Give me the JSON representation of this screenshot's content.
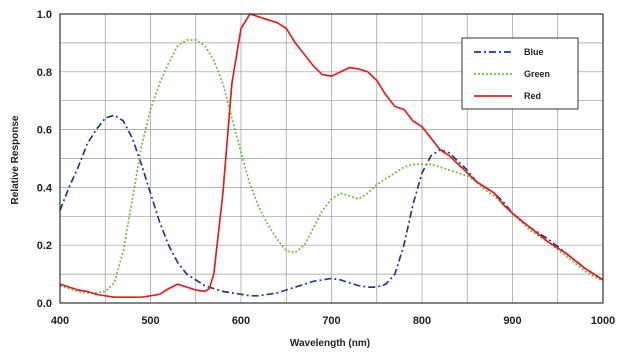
{
  "chart_data": {
    "type": "line",
    "title": "",
    "xlabel": "Wavelength (nm)",
    "ylabel": "Relative Response",
    "xlim": [
      400,
      1000
    ],
    "ylim": [
      0,
      1.0
    ],
    "x_ticks": [
      "400",
      "500",
      "600",
      "700",
      "800",
      "900",
      "1000"
    ],
    "y_ticks": [
      "0.0",
      "0.2",
      "0.4",
      "0.6",
      "0.8",
      "1.0"
    ],
    "grid": true,
    "legend_position": "top-right",
    "series": [
      {
        "name": "Blue",
        "color": "#1f3c8c",
        "dash": "dash-dot",
        "points": [
          [
            400,
            0.32
          ],
          [
            410,
            0.4
          ],
          [
            420,
            0.47
          ],
          [
            430,
            0.55
          ],
          [
            440,
            0.6
          ],
          [
            450,
            0.64
          ],
          [
            460,
            0.65
          ],
          [
            470,
            0.63
          ],
          [
            480,
            0.57
          ],
          [
            490,
            0.48
          ],
          [
            500,
            0.38
          ],
          [
            510,
            0.28
          ],
          [
            520,
            0.2
          ],
          [
            530,
            0.14
          ],
          [
            540,
            0.1
          ],
          [
            550,
            0.08
          ],
          [
            560,
            0.06
          ],
          [
            570,
            0.05
          ],
          [
            580,
            0.04
          ],
          [
            590,
            0.035
          ],
          [
            600,
            0.03
          ],
          [
            610,
            0.025
          ],
          [
            620,
            0.025
          ],
          [
            630,
            0.03
          ],
          [
            640,
            0.035
          ],
          [
            650,
            0.045
          ],
          [
            660,
            0.055
          ],
          [
            670,
            0.065
          ],
          [
            680,
            0.075
          ],
          [
            690,
            0.08
          ],
          [
            700,
            0.085
          ],
          [
            710,
            0.08
          ],
          [
            720,
            0.07
          ],
          [
            730,
            0.06
          ],
          [
            740,
            0.055
          ],
          [
            750,
            0.055
          ],
          [
            760,
            0.065
          ],
          [
            770,
            0.1
          ],
          [
            780,
            0.2
          ],
          [
            790,
            0.34
          ],
          [
            800,
            0.45
          ],
          [
            810,
            0.51
          ],
          [
            820,
            0.53
          ],
          [
            830,
            0.52
          ],
          [
            840,
            0.49
          ],
          [
            850,
            0.46
          ],
          [
            860,
            0.42
          ],
          [
            870,
            0.4
          ],
          [
            880,
            0.38
          ],
          [
            890,
            0.35
          ],
          [
            900,
            0.31
          ],
          [
            920,
            0.26
          ],
          [
            940,
            0.22
          ],
          [
            960,
            0.17
          ],
          [
            980,
            0.12
          ],
          [
            1000,
            0.08
          ]
        ]
      },
      {
        "name": "Green",
        "color": "#6dbf3a",
        "dash": "dotted",
        "points": [
          [
            400,
            0.06
          ],
          [
            410,
            0.05
          ],
          [
            420,
            0.04
          ],
          [
            430,
            0.035
          ],
          [
            440,
            0.035
          ],
          [
            450,
            0.04
          ],
          [
            460,
            0.07
          ],
          [
            470,
            0.18
          ],
          [
            480,
            0.36
          ],
          [
            490,
            0.54
          ],
          [
            500,
            0.67
          ],
          [
            510,
            0.76
          ],
          [
            520,
            0.83
          ],
          [
            530,
            0.89
          ],
          [
            540,
            0.91
          ],
          [
            550,
            0.91
          ],
          [
            560,
            0.89
          ],
          [
            570,
            0.84
          ],
          [
            580,
            0.76
          ],
          [
            590,
            0.64
          ],
          [
            600,
            0.52
          ],
          [
            610,
            0.41
          ],
          [
            620,
            0.33
          ],
          [
            630,
            0.27
          ],
          [
            640,
            0.22
          ],
          [
            650,
            0.18
          ],
          [
            660,
            0.175
          ],
          [
            670,
            0.2
          ],
          [
            680,
            0.26
          ],
          [
            690,
            0.32
          ],
          [
            700,
            0.36
          ],
          [
            710,
            0.38
          ],
          [
            720,
            0.37
          ],
          [
            730,
            0.36
          ],
          [
            740,
            0.38
          ],
          [
            750,
            0.41
          ],
          [
            760,
            0.43
          ],
          [
            770,
            0.45
          ],
          [
            780,
            0.47
          ],
          [
            790,
            0.48
          ],
          [
            800,
            0.48
          ],
          [
            810,
            0.48
          ],
          [
            820,
            0.47
          ],
          [
            830,
            0.46
          ],
          [
            840,
            0.45
          ],
          [
            850,
            0.44
          ],
          [
            860,
            0.42
          ],
          [
            870,
            0.39
          ],
          [
            880,
            0.37
          ],
          [
            890,
            0.34
          ],
          [
            900,
            0.31
          ],
          [
            920,
            0.25
          ],
          [
            940,
            0.21
          ],
          [
            960,
            0.16
          ],
          [
            980,
            0.11
          ],
          [
            1000,
            0.075
          ]
        ]
      },
      {
        "name": "Red",
        "color": "#e02020",
        "dash": "solid",
        "points": [
          [
            400,
            0.065
          ],
          [
            410,
            0.055
          ],
          [
            420,
            0.045
          ],
          [
            430,
            0.04
          ],
          [
            440,
            0.03
          ],
          [
            450,
            0.025
          ],
          [
            460,
            0.02
          ],
          [
            470,
            0.02
          ],
          [
            480,
            0.02
          ],
          [
            490,
            0.02
          ],
          [
            500,
            0.025
          ],
          [
            510,
            0.03
          ],
          [
            520,
            0.05
          ],
          [
            530,
            0.065
          ],
          [
            540,
            0.055
          ],
          [
            550,
            0.045
          ],
          [
            560,
            0.04
          ],
          [
            565,
            0.05
          ],
          [
            570,
            0.1
          ],
          [
            580,
            0.38
          ],
          [
            590,
            0.76
          ],
          [
            600,
            0.95
          ],
          [
            610,
            1.0
          ],
          [
            620,
            0.99
          ],
          [
            630,
            0.98
          ],
          [
            640,
            0.97
          ],
          [
            650,
            0.95
          ],
          [
            660,
            0.9
          ],
          [
            670,
            0.86
          ],
          [
            680,
            0.82
          ],
          [
            690,
            0.79
          ],
          [
            700,
            0.785
          ],
          [
            710,
            0.8
          ],
          [
            720,
            0.815
          ],
          [
            730,
            0.81
          ],
          [
            740,
            0.8
          ],
          [
            750,
            0.77
          ],
          [
            760,
            0.72
          ],
          [
            770,
            0.68
          ],
          [
            780,
            0.67
          ],
          [
            790,
            0.63
          ],
          [
            800,
            0.61
          ],
          [
            810,
            0.57
          ],
          [
            820,
            0.53
          ],
          [
            830,
            0.51
          ],
          [
            840,
            0.48
          ],
          [
            850,
            0.45
          ],
          [
            860,
            0.42
          ],
          [
            870,
            0.4
          ],
          [
            880,
            0.38
          ],
          [
            890,
            0.34
          ],
          [
            900,
            0.31
          ],
          [
            920,
            0.26
          ],
          [
            940,
            0.21
          ],
          [
            960,
            0.17
          ],
          [
            980,
            0.12
          ],
          [
            1000,
            0.08
          ]
        ]
      }
    ]
  }
}
